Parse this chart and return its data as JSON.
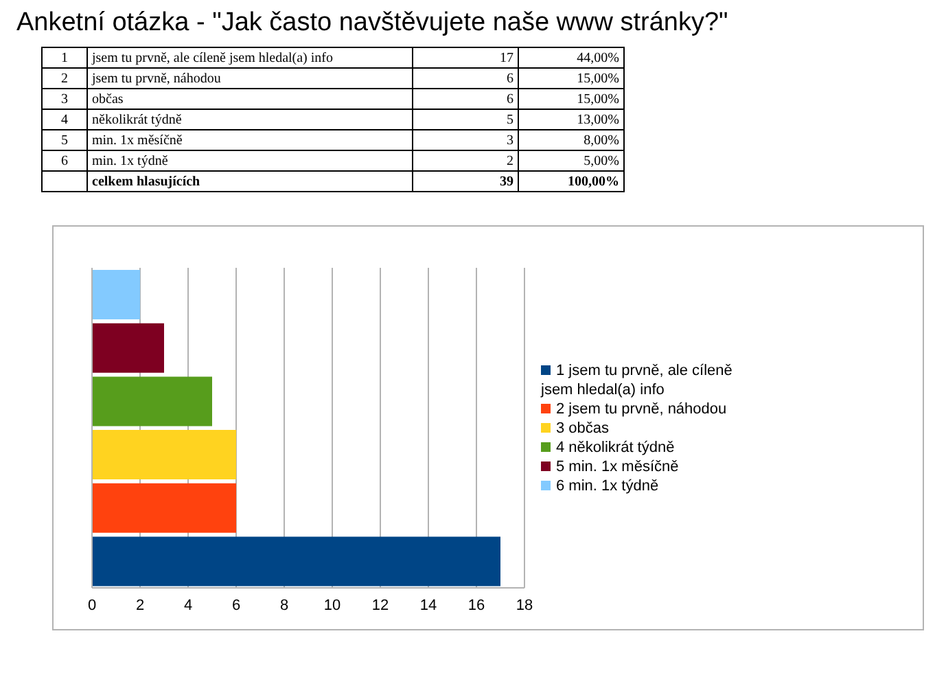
{
  "chart_data": {
    "type": "bar",
    "orientation": "horizontal",
    "stacked": true,
    "title": "Anketní otázka - \"Jak často navštěvujete naše www stránky?\"",
    "categories": [
      null,
      null,
      null,
      null,
      null,
      null
    ],
    "series": [
      {
        "name": "1 jsem tu prvně, ale cíleně jsem hledal(a) info",
        "color": "#004586",
        "values": [
          null,
          null,
          null,
          null,
          null,
          17
        ]
      },
      {
        "name": "2 jsem tu prvně, náhodou",
        "color": "#ff420e",
        "values": [
          null,
          null,
          null,
          null,
          6,
          null
        ]
      },
      {
        "name": "3 občas",
        "color": "#ffd320",
        "values": [
          null,
          null,
          null,
          6,
          null,
          null
        ]
      },
      {
        "name": "4 několikrát týdně",
        "color": "#579d1c",
        "values": [
          null,
          null,
          5,
          null,
          null,
          null
        ]
      },
      {
        "name": "5 min. 1x měsíčně",
        "color": "#7e0021",
        "values": [
          null,
          3,
          null,
          null,
          null,
          null
        ]
      },
      {
        "name": "6 min. 1x týdně",
        "color": "#83caff",
        "values": [
          2,
          null,
          null,
          null,
          null,
          null
        ]
      }
    ],
    "xlim": [
      0,
      18
    ],
    "xticks": [
      0,
      2,
      4,
      6,
      8,
      10,
      12,
      14,
      16,
      18
    ],
    "grid": "x",
    "legend": "right",
    "tick_labels": "x",
    "annotations": [
      "1",
      "jsem tu prvně, ale cíleně jsem hledal(a) info",
      "17",
      "44,00%",
      "2",
      "jsem tu prvně, náhodou",
      "6",
      "15,00%",
      "3",
      "občas",
      "6",
      "15,00%",
      "4",
      "několikrát týdně",
      "5",
      "13,00%",
      "5",
      "min. 1x měsíčně",
      "3",
      "8,00%",
      "6",
      "min. 1x týdně",
      "2",
      "5,00%",
      "celkem hlasujících",
      "39",
      "100,00%"
    ]
  }
}
